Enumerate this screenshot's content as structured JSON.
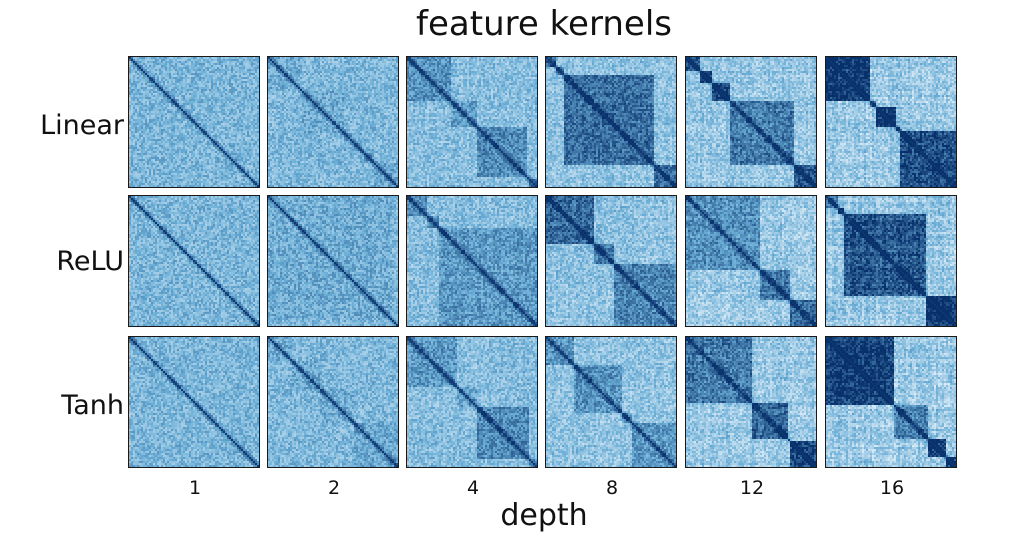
{
  "chart_data": {
    "type": "heatmap",
    "title": "feature kernels",
    "xlabel": "depth",
    "rows": [
      "Linear",
      "ReLU",
      "Tanh"
    ],
    "columns": [
      "1",
      "2",
      "4",
      "8",
      "12",
      "16"
    ],
    "colormap": "Blues",
    "colors": {
      "low": "#f7fbff",
      "mid": "#6baed6",
      "high": "#08306b"
    },
    "block_structure_by_depth": {
      "1": 0.0,
      "2": 0.1,
      "4": 0.35,
      "8": 0.55,
      "12": 0.75,
      "16": 0.85
    },
    "panels": [
      {
        "row": "Linear",
        "depth": "1"
      },
      {
        "row": "Linear",
        "depth": "2"
      },
      {
        "row": "Linear",
        "depth": "4"
      },
      {
        "row": "Linear",
        "depth": "8"
      },
      {
        "row": "Linear",
        "depth": "12"
      },
      {
        "row": "Linear",
        "depth": "16"
      },
      {
        "row": "ReLU",
        "depth": "1"
      },
      {
        "row": "ReLU",
        "depth": "2"
      },
      {
        "row": "ReLU",
        "depth": "4"
      },
      {
        "row": "ReLU",
        "depth": "8"
      },
      {
        "row": "ReLU",
        "depth": "12"
      },
      {
        "row": "ReLU",
        "depth": "16"
      },
      {
        "row": "Tanh",
        "depth": "1"
      },
      {
        "row": "Tanh",
        "depth": "2"
      },
      {
        "row": "Tanh",
        "depth": "4"
      },
      {
        "row": "Tanh",
        "depth": "8"
      },
      {
        "row": "Tanh",
        "depth": "12"
      },
      {
        "row": "Tanh",
        "depth": "16"
      }
    ]
  }
}
